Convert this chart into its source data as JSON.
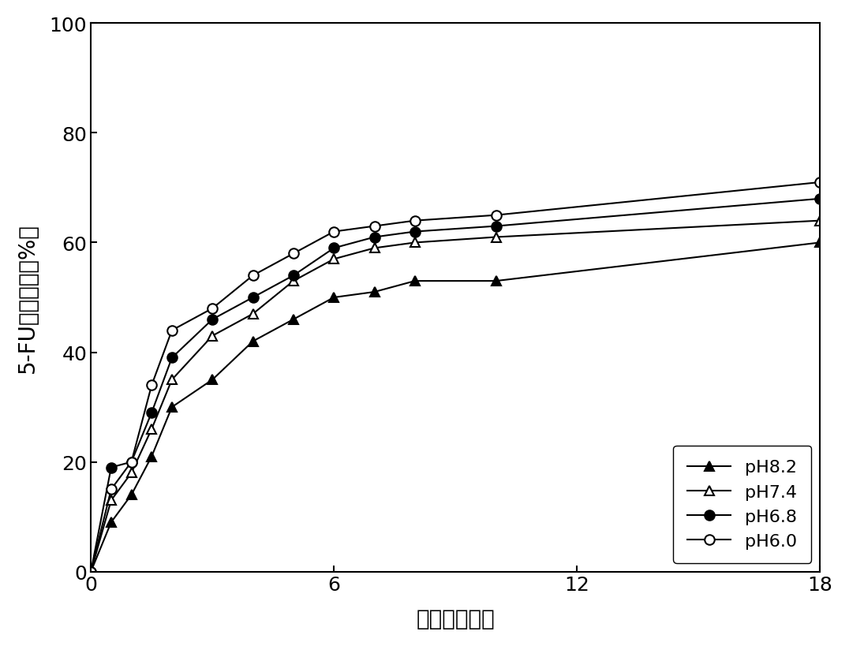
{
  "series": {
    "pH8.2": {
      "x": [
        0,
        0.5,
        1,
        1.5,
        2,
        3,
        4,
        5,
        6,
        7,
        8,
        10,
        18
      ],
      "y": [
        0,
        9,
        14,
        21,
        30,
        35,
        42,
        46,
        50,
        51,
        53,
        53,
        60
      ],
      "marker": "^",
      "markerfacecolor": "black",
      "markeredgecolor": "black",
      "label": "pH8.2"
    },
    "pH7.4": {
      "x": [
        0,
        0.5,
        1,
        1.5,
        2,
        3,
        4,
        5,
        6,
        7,
        8,
        10,
        18
      ],
      "y": [
        0,
        13,
        18,
        26,
        35,
        43,
        47,
        53,
        57,
        59,
        60,
        61,
        64
      ],
      "marker": "^",
      "markerfacecolor": "white",
      "markeredgecolor": "black",
      "label": "pH7.4"
    },
    "pH6.8": {
      "x": [
        0,
        0.5,
        1,
        1.5,
        2,
        3,
        4,
        5,
        6,
        7,
        8,
        10,
        18
      ],
      "y": [
        0,
        19,
        20,
        29,
        39,
        46,
        50,
        54,
        59,
        61,
        62,
        63,
        68
      ],
      "marker": "o",
      "markerfacecolor": "black",
      "markeredgecolor": "black",
      "label": "pH6.8"
    },
    "pH6.0": {
      "x": [
        0,
        0.5,
        1,
        1.5,
        2,
        3,
        4,
        5,
        6,
        7,
        8,
        10,
        18
      ],
      "y": [
        0,
        15,
        20,
        34,
        44,
        48,
        54,
        58,
        62,
        63,
        64,
        65,
        71
      ],
      "marker": "o",
      "markerfacecolor": "white",
      "markeredgecolor": "black",
      "label": "pH6.0"
    }
  },
  "series_order": [
    "pH8.2",
    "pH7.4",
    "pH6.8",
    "pH6.0"
  ],
  "xlabel_cn": "时间（小时）",
  "ylabel_cn": "5-FU总释放量（%）",
  "ylabel_parts": [
    "5-FU总释放量",
    "（%）"
  ],
  "xlim": [
    0,
    18
  ],
  "ylim": [
    0,
    100
  ],
  "xticks": [
    0,
    6,
    12,
    18
  ],
  "xticklabels": [
    "0",
    "6",
    "12",
    "18"
  ],
  "yticks": [
    0,
    20,
    40,
    60,
    80,
    100
  ],
  "yticklabels": [
    "0",
    "20",
    "40",
    "60",
    "80",
    "100"
  ],
  "background_color": "white",
  "legend_loc": "lower right",
  "markersize": 9,
  "linewidth": 1.5,
  "tick_fontsize": 18,
  "label_fontsize": 20
}
